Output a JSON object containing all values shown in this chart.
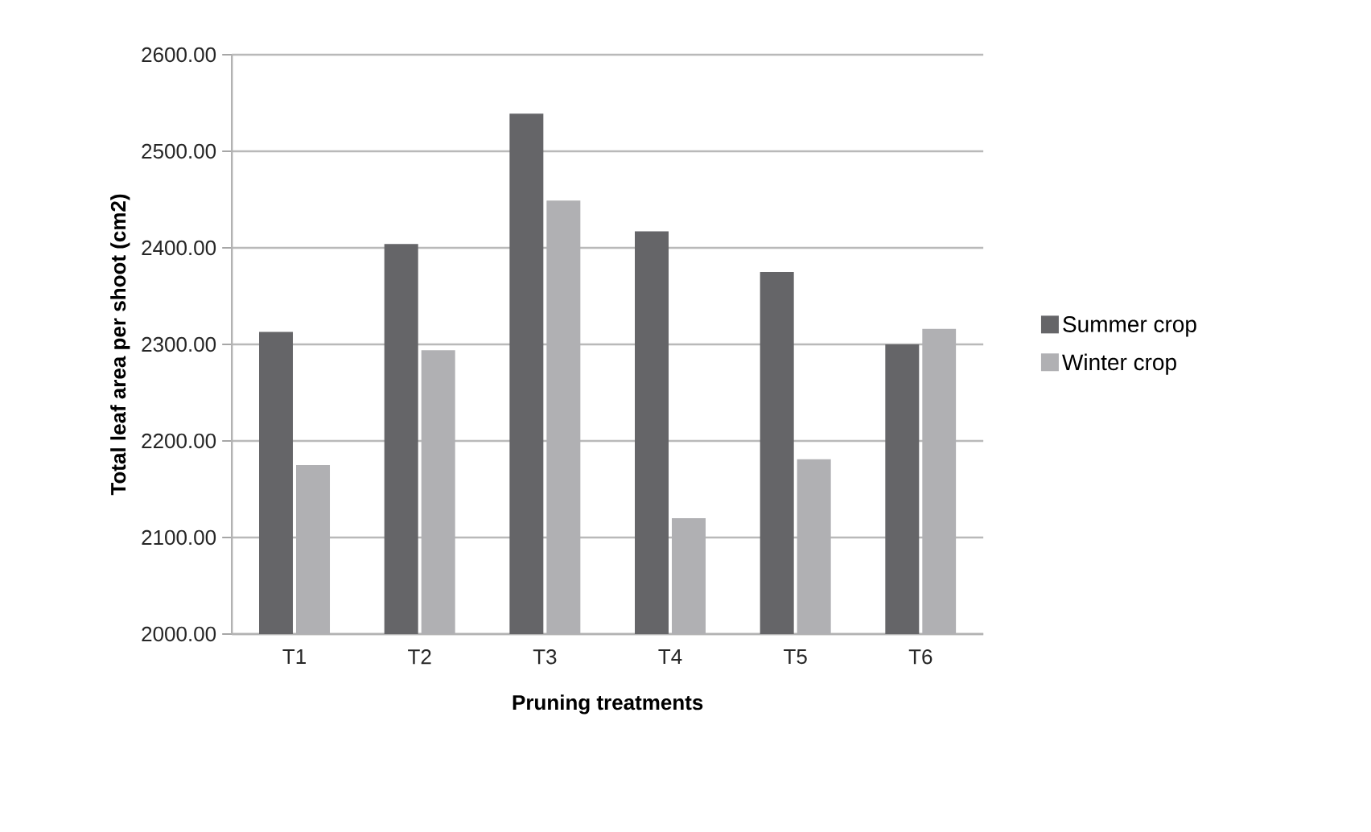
{
  "chart_data": {
    "type": "bar",
    "xlabel": "Pruning treatments",
    "ylabel": "Total leaf area per shoot  (cm2)",
    "categories": [
      "T1",
      "T2",
      "T3",
      "T4",
      "T5",
      "T6"
    ],
    "series": [
      {
        "name": "Summer crop",
        "color": "#656568",
        "values": [
          2313,
          2404,
          2539,
          2417,
          2375,
          2300
        ]
      },
      {
        "name": "Winter crop",
        "color": "#b0b0b3",
        "values": [
          2175,
          2294,
          2449,
          2120,
          2181,
          2316
        ]
      }
    ],
    "ylim": [
      2000,
      2600
    ],
    "yticks": [
      {
        "value": 2000,
        "label": "2000.00"
      },
      {
        "value": 2100,
        "label": "2100.00"
      },
      {
        "value": 2200,
        "label": "2200.00"
      },
      {
        "value": 2300,
        "label": "2300.00"
      },
      {
        "value": 2400,
        "label": "2400.00"
      },
      {
        "value": 2500,
        "label": "2500.00"
      },
      {
        "value": 2600,
        "label": "2600.00"
      }
    ],
    "grid": "y",
    "legend": "right"
  }
}
